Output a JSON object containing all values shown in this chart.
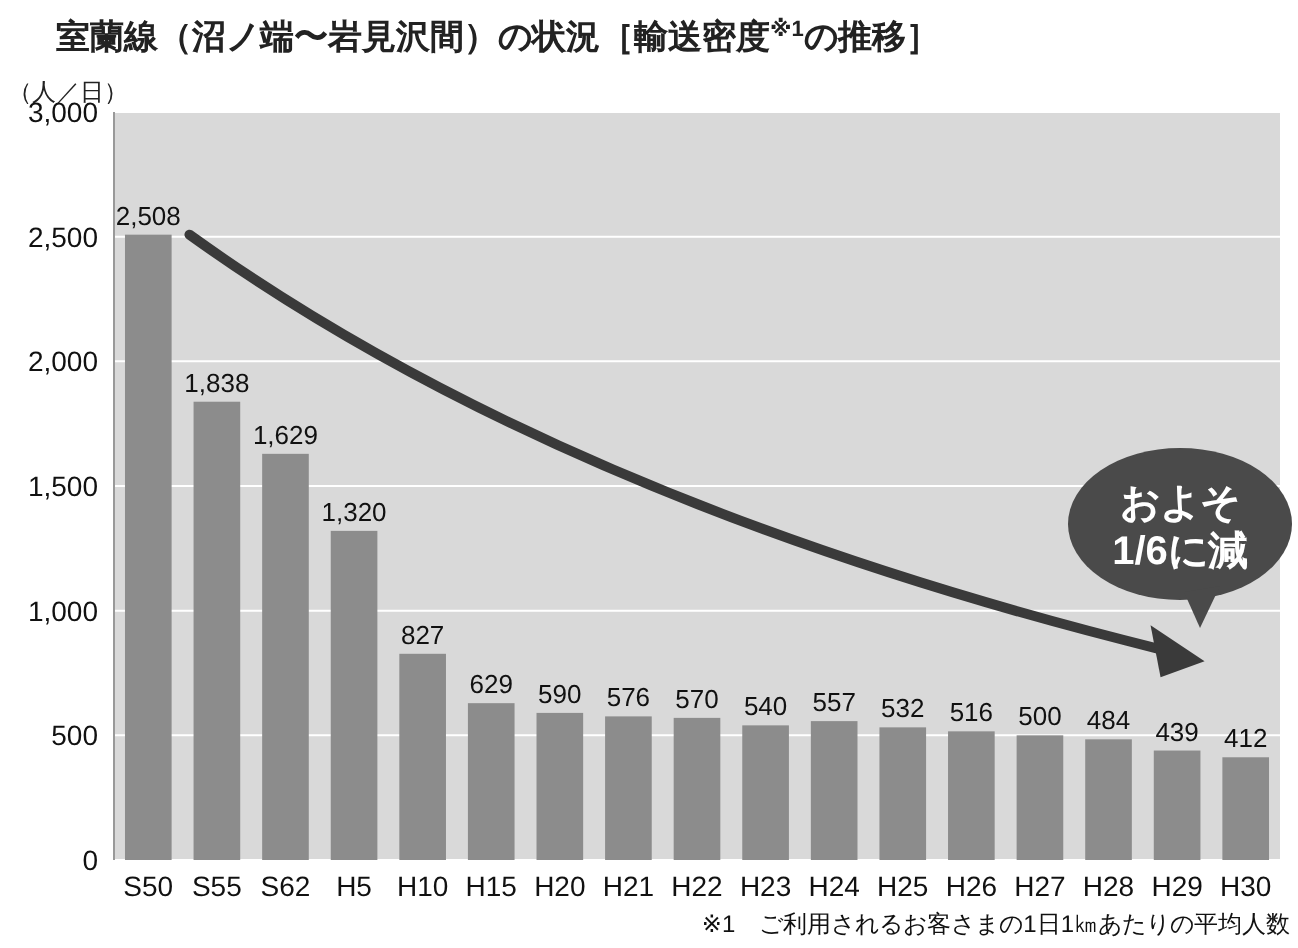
{
  "chart_data": {
    "type": "bar",
    "title": "室蘭線（沼ノ端〜岩見沢間）の状況［輸送密度$^{※1}$の推移］",
    "ylabel": "（人／日）",
    "categories": [
      "S50",
      "S55",
      "S62",
      "H5",
      "H10",
      "H15",
      "H20",
      "H21",
      "H22",
      "H23",
      "H24",
      "H25",
      "H26",
      "H27",
      "H28",
      "H29",
      "H30"
    ],
    "values": [
      2508,
      1838,
      1629,
      1320,
      827,
      629,
      590,
      576,
      570,
      540,
      557,
      532,
      516,
      500,
      484,
      439,
      412
    ],
    "color": "#8c8c8c",
    "value_labels": [
      "2,508",
      "1,838",
      "1,629",
      "1,320",
      "827",
      "629",
      "590",
      "576",
      "570",
      "540",
      "557",
      "532",
      "516",
      "500",
      "484",
      "439",
      "412"
    ],
    "ylim": [
      0,
      3000
    ],
    "yticks": [
      {
        "value": 0,
        "label": "0"
      },
      {
        "value": 500,
        "label": "500"
      },
      {
        "value": 1000,
        "label": "1,000"
      },
      {
        "value": 1500,
        "label": "1,500"
      },
      {
        "value": 2000,
        "label": "2,000"
      },
      {
        "value": 2500,
        "label": "2,500"
      },
      {
        "value": 3000,
        "label": "3,000"
      }
    ],
    "grid": "y",
    "annotations": [
      "およそ\n1/6に減",
      "※1　ご利用されるお客さまの1日1㎞あたりの平均人数"
    ]
  }
}
